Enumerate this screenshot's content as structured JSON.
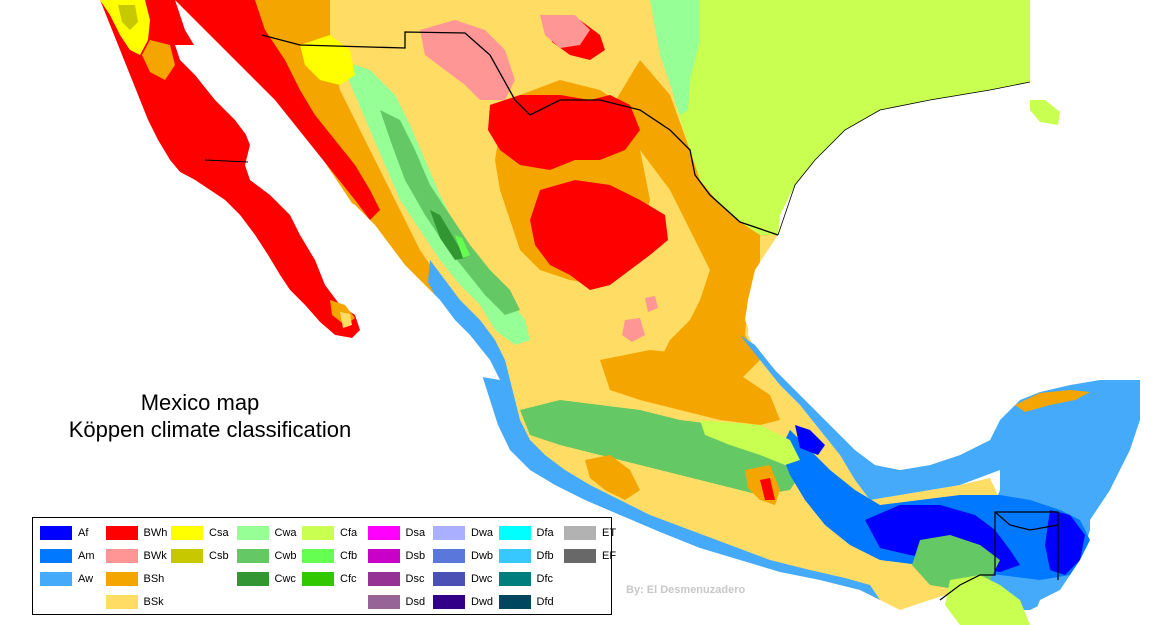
{
  "title": {
    "line1": "Mexico map",
    "line2": "Köppen climate classification"
  },
  "credit": "By: El Desmenuzadero",
  "colors": {
    "sea": "#ffffff",
    "border": "#000000",
    "Af": "#0000ff",
    "Am": "#0078ff",
    "Aw": "#46aafa",
    "BWh": "#ff0000",
    "BWk": "#ff9696",
    "BSh": "#f5a500",
    "BSk": "#ffdc64",
    "Csa": "#ffff00",
    "Csb": "#c8c800",
    "Cwa": "#96ff96",
    "Cwb": "#64c864",
    "Cwc": "#329632",
    "Cfa": "#c8ff50",
    "Cfb": "#64ff50",
    "Cfc": "#32c800",
    "Dsa": "#ff00ff",
    "Dsb": "#c800c8",
    "Dsc": "#963296",
    "Dsd": "#966496",
    "Dwa": "#aaafff",
    "Dwb": "#5a78dc",
    "Dwc": "#4b50b4",
    "Dwd": "#320087",
    "Dfa": "#00ffff",
    "Dfb": "#37c8ff",
    "Dfc": "#007d7d",
    "Dfd": "#00465f",
    "ET": "#b2b2b2",
    "EF": "#686868"
  },
  "legend": [
    {
      "code": "Af",
      "color": "#0000ff"
    },
    {
      "code": "Am",
      "color": "#0078ff"
    },
    {
      "code": "Aw",
      "color": "#46aafa"
    },
    {
      "code": "BWh",
      "color": "#ff0000"
    },
    {
      "code": "BWk",
      "color": "#ff9696"
    },
    {
      "code": "BSh",
      "color": "#f5a500"
    },
    {
      "code": "BSk",
      "color": "#ffdc64"
    },
    {
      "code": "Csa",
      "color": "#ffff00"
    },
    {
      "code": "Csb",
      "color": "#c8c800"
    },
    {
      "code": "Cwa",
      "color": "#96ff96"
    },
    {
      "code": "Cwb",
      "color": "#64c864"
    },
    {
      "code": "Cwc",
      "color": "#329632"
    },
    {
      "code": "Cfa",
      "color": "#c8ff50"
    },
    {
      "code": "Cfb",
      "color": "#64ff50"
    },
    {
      "code": "Cfc",
      "color": "#32c800"
    },
    {
      "code": "Dsa",
      "color": "#ff00ff"
    },
    {
      "code": "Dsb",
      "color": "#c800c8"
    },
    {
      "code": "Dsc",
      "color": "#963296"
    },
    {
      "code": "Dsd",
      "color": "#966496"
    },
    {
      "code": "Dwa",
      "color": "#aaafff"
    },
    {
      "code": "Dwb",
      "color": "#5a78dc"
    },
    {
      "code": "Dwc",
      "color": "#4b50b4"
    },
    {
      "code": "Dwd",
      "color": "#320087"
    },
    {
      "code": "Dfa",
      "color": "#00ffff"
    },
    {
      "code": "Dfb",
      "color": "#37c8ff"
    },
    {
      "code": "Dfc",
      "color": "#007d7d"
    },
    {
      "code": "Dfd",
      "color": "#00465f"
    },
    {
      "code": "ET",
      "color": "#b2b2b2"
    },
    {
      "code": "EF",
      "color": "#686868"
    }
  ]
}
